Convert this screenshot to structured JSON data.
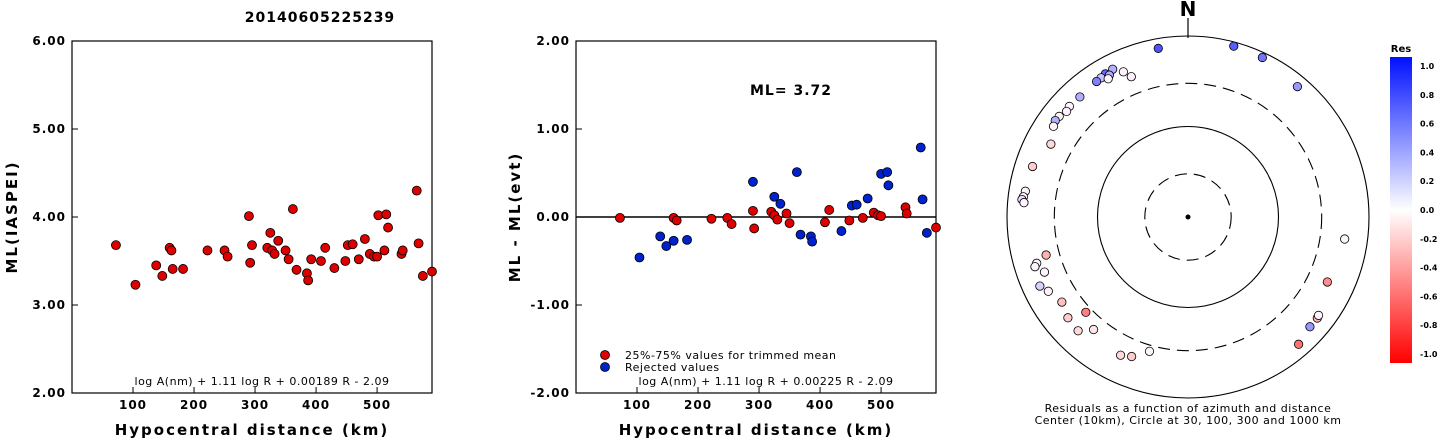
{
  "title": "20140605225239",
  "chart_data": [
    {
      "type": "scatter",
      "xlabel": "Hypocentral distance (km)",
      "ylabel": "ML(IASPEI)",
      "xlim": [
        0,
        590
      ],
      "ylim": [
        2.0,
        6.0
      ],
      "x_ticks": [
        "100",
        "200",
        "300",
        "400",
        "500"
      ],
      "y_ticks": [
        "2.00",
        "3.00",
        "4.00",
        "5.00",
        "6.00"
      ],
      "formula": "log A(nm) + 1.11 log R + 0.00189 R - 2.09",
      "marker_color": "#dd0000",
      "series": [
        {
          "points": [
            [
              72,
              3.68
            ],
            [
              104,
              3.23
            ],
            [
              138,
              3.45
            ],
            [
              148,
              3.33
            ],
            [
              160,
              3.65
            ],
            [
              163,
              3.62
            ],
            [
              165,
              3.41
            ],
            [
              182,
              3.41
            ],
            [
              222,
              3.62
            ],
            [
              250,
              3.62
            ],
            [
              255,
              3.55
            ],
            [
              290,
              4.01
            ],
            [
              292,
              3.48
            ],
            [
              295,
              3.68
            ],
            [
              320,
              3.65
            ],
            [
              325,
              3.82
            ],
            [
              328,
              3.62
            ],
            [
              332,
              3.58
            ],
            [
              338,
              3.73
            ],
            [
              350,
              3.62
            ],
            [
              355,
              3.52
            ],
            [
              362,
              4.09
            ],
            [
              368,
              3.4
            ],
            [
              385,
              3.36
            ],
            [
              387,
              3.28
            ],
            [
              392,
              3.52
            ],
            [
              408,
              3.5
            ],
            [
              415,
              3.65
            ],
            [
              430,
              3.42
            ],
            [
              448,
              3.5
            ],
            [
              452,
              3.68
            ],
            [
              460,
              3.69
            ],
            [
              470,
              3.52
            ],
            [
              480,
              3.75
            ],
            [
              488,
              3.58
            ],
            [
              495,
              3.55
            ],
            [
              500,
              3.55
            ],
            [
              502,
              4.02
            ],
            [
              512,
              3.62
            ],
            [
              515,
              4.03
            ],
            [
              518,
              3.88
            ],
            [
              540,
              3.58
            ],
            [
              542,
              3.62
            ],
            [
              565,
              4.3
            ],
            [
              568,
              3.7
            ],
            [
              575,
              3.33
            ],
            [
              590,
              3.38
            ]
          ]
        }
      ]
    },
    {
      "type": "scatter",
      "xlabel": "Hypocentral distance (km)",
      "ylabel": "ML - ML(evt)",
      "xlim": [
        0,
        590
      ],
      "ylim": [
        -2.0,
        2.0
      ],
      "x_ticks": [
        "100",
        "200",
        "300",
        "400",
        "500"
      ],
      "y_ticks": [
        "-2.00",
        "-1.00",
        "0.00",
        "1.00",
        "2.00"
      ],
      "annotation": "ML= 3.72",
      "formula": "log A(nm) + 1.11 log R + 0.00225 R - 2.09",
      "legend": [
        "25%-75% values for trimmed mean",
        "Rejected values"
      ],
      "legend_position": "bottom-left",
      "reference_line": 0.0,
      "series": [
        {
          "name": "25%-75% values for trimmed mean",
          "color": "#dd0000",
          "points": [
            [
              72,
              -0.01
            ],
            [
              160,
              -0.01
            ],
            [
              165,
              -0.04
            ],
            [
              222,
              -0.02
            ],
            [
              248,
              -0.01
            ],
            [
              255,
              -0.08
            ],
            [
              290,
              0.07
            ],
            [
              292,
              -0.13
            ],
            [
              320,
              0.06
            ],
            [
              325,
              0.02
            ],
            [
              330,
              -0.03
            ],
            [
              345,
              0.04
            ],
            [
              350,
              -0.07
            ],
            [
              415,
              0.08
            ],
            [
              408,
              -0.06
            ],
            [
              448,
              -0.04
            ],
            [
              470,
              -0.01
            ],
            [
              488,
              0.05
            ],
            [
              495,
              0.02
            ],
            [
              500,
              0.01
            ],
            [
              540,
              0.11
            ],
            [
              542,
              0.04
            ],
            [
              590,
              -0.12
            ]
          ]
        },
        {
          "name": "Rejected values",
          "color": "#0022cc",
          "points": [
            [
              104,
              -0.46
            ],
            [
              138,
              -0.22
            ],
            [
              148,
              -0.33
            ],
            [
              160,
              -0.27
            ],
            [
              182,
              -0.26
            ],
            [
              290,
              0.4
            ],
            [
              325,
              0.23
            ],
            [
              335,
              0.15
            ],
            [
              362,
              0.51
            ],
            [
              368,
              -0.2
            ],
            [
              385,
              -0.22
            ],
            [
              387,
              -0.28
            ],
            [
              435,
              -0.16
            ],
            [
              452,
              0.13
            ],
            [
              460,
              0.14
            ],
            [
              478,
              0.21
            ],
            [
              500,
              0.49
            ],
            [
              510,
              0.51
            ],
            [
              512,
              0.36
            ],
            [
              565,
              0.79
            ],
            [
              568,
              0.2
            ],
            [
              575,
              -0.18
            ]
          ]
        }
      ]
    },
    {
      "type": "scatter",
      "subtype": "polar",
      "north_label": "N",
      "caption_line1": "Residuals as a function of azimuth and distance",
      "caption_line2": "Center (10km), Circle at 30, 100, 300 and 1000 km",
      "colorbar_title": "Res",
      "colorbar_ticks": [
        "1.0",
        "0.8",
        "0.6",
        "0.4",
        "0.2",
        "0.0",
        "-0.2",
        "-0.4",
        "-0.6",
        "-0.8",
        "-1.0"
      ],
      "colorbar_range": [
        -1.0,
        1.0
      ],
      "rings_km": [
        30,
        100,
        300,
        1000
      ],
      "points_az_dist_res": [
        [
          15,
          900,
          0.65
        ],
        [
          25,
          880,
          0.55
        ],
        [
          40,
          760,
          0.4
        ],
        [
          350,
          780,
          0.7
        ],
        [
          333,
          680,
          0.3
        ],
        [
          330,
          670,
          0.6
        ],
        [
          328,
          650,
          0.2
        ],
        [
          326,
          640,
          0.5
        ],
        [
          331,
          620,
          0.3
        ],
        [
          336,
          570,
          0.0
        ],
        [
          330,
          580,
          0.0
        ],
        [
          338,
          470,
          0.0
        ],
        [
          318,
          610,
          0.3
        ],
        [
          313,
          620,
          0.0
        ],
        [
          311,
          600,
          0.0
        ],
        [
          308,
          640,
          -0.05
        ],
        [
          306,
          650,
          0.3
        ],
        [
          304,
          620,
          -0.05
        ],
        [
          298,
          520,
          -0.15
        ],
        [
          288,
          640,
          -0.2
        ],
        [
          279,
          660,
          0.0
        ],
        [
          277,
          680,
          0.0
        ],
        [
          276,
          700,
          0.1
        ],
        [
          275,
          660,
          0.0
        ],
        [
          255,
          420,
          -0.3
        ],
        [
          253,
          560,
          0.0
        ],
        [
          252,
          600,
          0.0
        ],
        [
          249,
          500,
          0.0
        ],
        [
          245,
          640,
          0.15
        ],
        [
          242,
          560,
          0.0
        ],
        [
          236,
          480,
          -0.25
        ],
        [
          230,
          540,
          -0.2
        ],
        [
          224,
          560,
          -0.15
        ],
        [
          227,
          350,
          -0.5
        ],
        [
          220,
          420,
          -0.1
        ],
        [
          206,
          500,
          -0.15
        ],
        [
          202,
          460,
          -0.2
        ],
        [
          196,
          350,
          0.0
        ],
        [
          132,
          650,
          0.4
        ],
        [
          128,
          650,
          -0.3
        ],
        [
          127,
          640,
          0.0
        ],
        [
          115,
          500,
          -0.45
        ],
        [
          98,
          560,
          0.0
        ],
        [
          139,
          730,
          -0.55
        ]
      ]
    }
  ]
}
